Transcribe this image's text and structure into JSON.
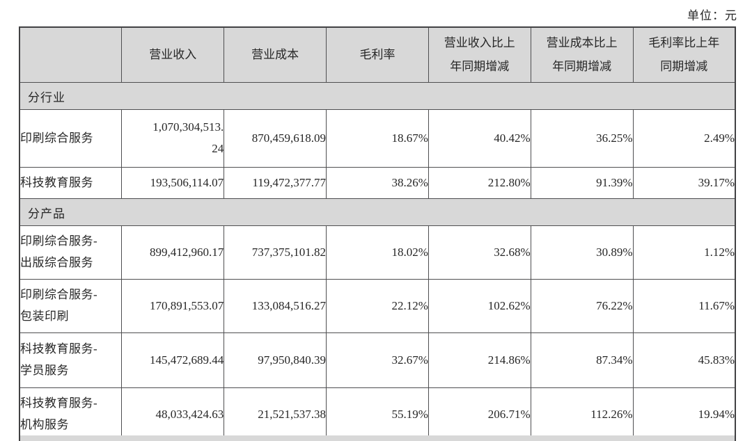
{
  "page": {
    "unit_label": "单位：元"
  },
  "table": {
    "columns": [
      "",
      "营业收入",
      "营业成本",
      "毛利率",
      "营业收入比上\n年同期增减",
      "营业成本比上\n年同期增减",
      "毛利率比上年\n同期增减"
    ],
    "sections": [
      {
        "label": "分行业",
        "rows": [
          {
            "name": "印刷综合服务",
            "revenue": "1,070,304,513.\n24",
            "cost": "870,459,618.09",
            "gross_margin": "18.67%",
            "revenue_yoy": "40.42%",
            "cost_yoy": "36.25%",
            "margin_yoy": "2.49%"
          },
          {
            "name": "科技教育服务",
            "revenue": "193,506,114.07",
            "cost": "119,472,377.77",
            "gross_margin": "38.26%",
            "revenue_yoy": "212.80%",
            "cost_yoy": "91.39%",
            "margin_yoy": "39.17%"
          }
        ]
      },
      {
        "label": "分产品",
        "rows": [
          {
            "name": "印刷综合服务-\n出版综合服务",
            "revenue": "899,412,960.17",
            "cost": "737,375,101.82",
            "gross_margin": "18.02%",
            "revenue_yoy": "32.68%",
            "cost_yoy": "30.89%",
            "margin_yoy": "1.12%"
          },
          {
            "name": "印刷综合服务-\n包装印刷",
            "revenue": "170,891,553.07",
            "cost": "133,084,516.27",
            "gross_margin": "22.12%",
            "revenue_yoy": "102.62%",
            "cost_yoy": "76.22%",
            "margin_yoy": "11.67%"
          },
          {
            "name": "科技教育服务-\n学员服务",
            "revenue": "145,472,689.44",
            "cost": "97,950,840.39",
            "gross_margin": "32.67%",
            "revenue_yoy": "214.86%",
            "cost_yoy": "87.34%",
            "margin_yoy": "45.83%"
          },
          {
            "name": "科技教育服务-\n机构服务",
            "revenue": "48,033,424.63",
            "cost": "21,521,537.38",
            "gross_margin": "55.19%",
            "revenue_yoy": "206.71%",
            "cost_yoy": "112.26%",
            "margin_yoy": "19.94%"
          }
        ]
      }
    ]
  },
  "colors": {
    "band_background": "#d8d8d8",
    "border": "#4e4e50",
    "text": "#262626"
  }
}
